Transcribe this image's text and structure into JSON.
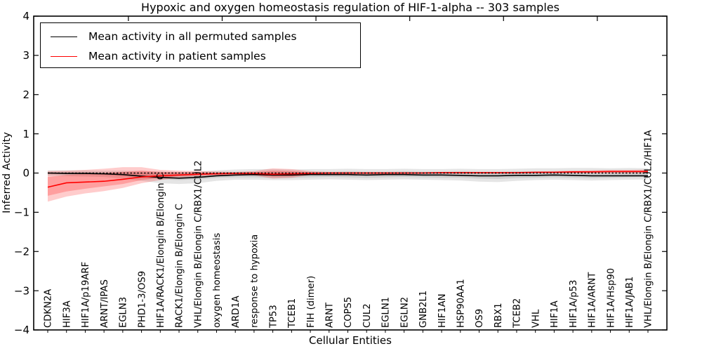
{
  "chart_data": {
    "type": "line",
    "title": "Hypoxic and oxygen homeostasis regulation of HIF-1-alpha -- 303 samples",
    "xlabel": "Cellular Entities",
    "ylabel": "Inferred Activity",
    "ylim": [
      -4,
      4
    ],
    "ytick_values": [
      4,
      3,
      2,
      1,
      0,
      -1,
      -2,
      -3,
      -4
    ],
    "ytick_labels": [
      "4",
      "3",
      "2",
      "1",
      "0",
      "−1",
      "−2",
      "−3",
      "−4"
    ],
    "grid": false,
    "legend_position": "upper left",
    "zero_line": {
      "value": 0,
      "style": "dotted",
      "color": "#000000"
    },
    "categories": [
      "CDKN2A",
      "HIF3A",
      "HIF1A/p19ARF",
      "ARNT/IPAS",
      "EGLN3",
      "PHD1-3/OS9",
      "HIF1A/RACK1/Elongin B/Elongin C",
      "RACK1/Elongin B/Elongin C",
      "VHL/Elongin B/Elongin C/RBX1/CUL2",
      "oxygen homeostasis",
      "ARD1A",
      "response to hypoxia",
      "TP53",
      "TCEB1",
      "FIH (dimer)",
      "ARNT",
      "COPS5",
      "CUL2",
      "EGLN1",
      "EGLN2",
      "GNB2L1",
      "HIF1AN",
      "HSP90AA1",
      "OS9",
      "RBX1",
      "TCEB2",
      "VHL",
      "HIF1A",
      "HIF1A/p53",
      "HIF1A/ARNT",
      "HIF1A/Hsp90",
      "HIF1A/JAB1",
      "VHL/Elongin B/Elongin C/RBX1/CUL2/HIF1A"
    ],
    "series": [
      {
        "name": "Mean activity in all permuted samples",
        "color": "#000000",
        "values": [
          0.0,
          -0.01,
          -0.01,
          -0.02,
          -0.04,
          -0.08,
          -0.11,
          -0.13,
          -0.11,
          -0.07,
          -0.05,
          -0.04,
          -0.05,
          -0.05,
          -0.04,
          -0.04,
          -0.04,
          -0.05,
          -0.04,
          -0.04,
          -0.05,
          -0.05,
          -0.06,
          -0.07,
          -0.07,
          -0.06,
          -0.06,
          -0.05,
          -0.06,
          -0.07,
          -0.07,
          -0.07,
          -0.07
        ]
      },
      {
        "name": "Mean activity in patient samples",
        "color": "#ff0000",
        "values": [
          -0.36,
          -0.25,
          -0.23,
          -0.21,
          -0.16,
          -0.1,
          -0.07,
          -0.05,
          -0.03,
          -0.02,
          -0.01,
          -0.01,
          -0.03,
          -0.02,
          -0.01,
          0.0,
          0.0,
          0.0,
          0.0,
          0.0,
          0.0,
          0.01,
          0.01,
          0.01,
          0.01,
          0.01,
          0.02,
          0.02,
          0.03,
          0.03,
          0.04,
          0.04,
          0.04
        ]
      }
    ],
    "bands": [
      {
        "series": "permuted",
        "level": "outer",
        "color": "#000000",
        "alpha": 0.1,
        "hi": [
          0.07,
          0.07,
          0.07,
          0.06,
          0.06,
          0.05,
          0.04,
          0.03,
          0.04,
          0.07,
          0.09,
          0.1,
          0.1,
          0.09,
          0.1,
          0.1,
          0.11,
          0.1,
          0.1,
          0.11,
          0.1,
          0.1,
          0.11,
          0.1,
          0.1,
          0.11,
          0.12,
          0.12,
          0.13,
          0.13,
          0.12,
          0.13,
          0.12
        ],
        "lo": [
          -0.07,
          -0.08,
          -0.09,
          -0.1,
          -0.14,
          -0.2,
          -0.26,
          -0.28,
          -0.26,
          -0.2,
          -0.17,
          -0.17,
          -0.18,
          -0.18,
          -0.17,
          -0.16,
          -0.17,
          -0.18,
          -0.17,
          -0.16,
          -0.17,
          -0.18,
          -0.19,
          -0.22,
          -0.23,
          -0.2,
          -0.18,
          -0.17,
          -0.18,
          -0.19,
          -0.18,
          -0.17,
          -0.16
        ]
      },
      {
        "series": "permuted",
        "level": "inner",
        "color": "#000000",
        "alpha": 0.1,
        "hi": [
          0.03,
          0.03,
          0.03,
          0.02,
          0.02,
          0.01,
          0.0,
          -0.01,
          0.0,
          0.02,
          0.03,
          0.03,
          0.03,
          0.03,
          0.03,
          0.03,
          0.04,
          0.03,
          0.03,
          0.04,
          0.03,
          0.03,
          0.04,
          0.03,
          0.03,
          0.04,
          0.04,
          0.04,
          0.05,
          0.05,
          0.04,
          0.05,
          0.04
        ],
        "lo": [
          -0.03,
          -0.04,
          -0.04,
          -0.05,
          -0.08,
          -0.12,
          -0.16,
          -0.18,
          -0.16,
          -0.12,
          -0.11,
          -0.11,
          -0.12,
          -0.12,
          -0.11,
          -0.1,
          -0.11,
          -0.12,
          -0.11,
          -0.1,
          -0.11,
          -0.12,
          -0.12,
          -0.14,
          -0.15,
          -0.13,
          -0.12,
          -0.11,
          -0.12,
          -0.13,
          -0.12,
          -0.11,
          -0.1
        ]
      },
      {
        "series": "patient",
        "level": "outer",
        "color": "#ff0000",
        "alpha": 0.2,
        "hi": [
          0.05,
          0.06,
          0.08,
          0.11,
          0.15,
          0.15,
          0.08,
          0.06,
          0.05,
          0.04,
          0.03,
          0.05,
          0.12,
          0.1,
          0.05,
          0.03,
          0.03,
          0.03,
          0.03,
          0.03,
          0.03,
          0.03,
          0.03,
          0.03,
          0.03,
          0.03,
          0.04,
          0.05,
          0.06,
          0.07,
          0.08,
          0.08,
          0.09
        ],
        "lo": [
          -0.73,
          -0.6,
          -0.52,
          -0.46,
          -0.38,
          -0.26,
          -0.18,
          -0.12,
          -0.08,
          -0.06,
          -0.04,
          -0.06,
          -0.14,
          -0.12,
          -0.05,
          -0.03,
          -0.03,
          -0.03,
          -0.03,
          -0.03,
          -0.02,
          -0.02,
          -0.02,
          -0.02,
          -0.02,
          -0.02,
          -0.01,
          -0.01,
          0.0,
          0.0,
          0.0,
          0.0,
          0.0
        ]
      },
      {
        "series": "patient",
        "level": "inner",
        "color": "#ff0000",
        "alpha": 0.22,
        "hi": [
          -0.1,
          -0.05,
          -0.02,
          0.0,
          0.03,
          0.06,
          0.03,
          0.02,
          0.02,
          0.01,
          0.01,
          0.02,
          0.06,
          0.05,
          0.02,
          0.01,
          0.01,
          0.01,
          0.01,
          0.01,
          0.01,
          0.02,
          0.02,
          0.02,
          0.02,
          0.02,
          0.02,
          0.03,
          0.04,
          0.05,
          0.05,
          0.06,
          0.06
        ],
        "lo": [
          -0.58,
          -0.47,
          -0.4,
          -0.34,
          -0.28,
          -0.18,
          -0.12,
          -0.08,
          -0.06,
          -0.04,
          -0.03,
          -0.04,
          -0.09,
          -0.08,
          -0.03,
          -0.02,
          -0.02,
          -0.02,
          -0.02,
          -0.01,
          -0.01,
          -0.01,
          0.0,
          0.0,
          0.0,
          0.0,
          0.0,
          0.01,
          0.01,
          0.02,
          0.02,
          0.02,
          0.02
        ]
      }
    ]
  },
  "legend": {
    "entries": [
      {
        "label": "Mean activity in all permuted samples",
        "color": "#000000"
      },
      {
        "label": "Mean activity in patient samples",
        "color": "#ff0000"
      }
    ]
  }
}
